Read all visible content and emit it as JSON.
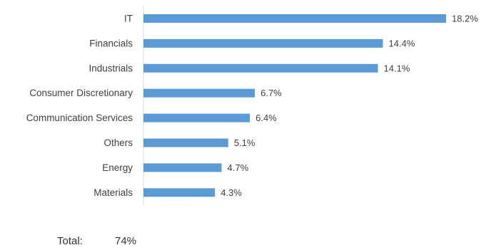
{
  "chart_data": {
    "type": "bar",
    "orientation": "horizontal",
    "categories": [
      "IT",
      "Financials",
      "Industrials",
      "Consumer Discretionary",
      "Communication Services",
      "Others",
      "Energy",
      "Materials"
    ],
    "values": [
      18.2,
      14.4,
      14.1,
      6.7,
      6.4,
      5.1,
      4.7,
      4.3
    ],
    "value_labels": [
      "18.2%",
      "14.4%",
      "14.1%",
      "6.7%",
      "6.4%",
      "5.1%",
      "4.7%",
      "4.3%"
    ],
    "unit": "%",
    "xlim": [
      0,
      20
    ],
    "grid": false,
    "legend": "none",
    "bar_color": "#5b9bd5",
    "axis_color": "#d9d9d9"
  },
  "summary": {
    "total_label": "Total:",
    "total_value": "74%"
  }
}
